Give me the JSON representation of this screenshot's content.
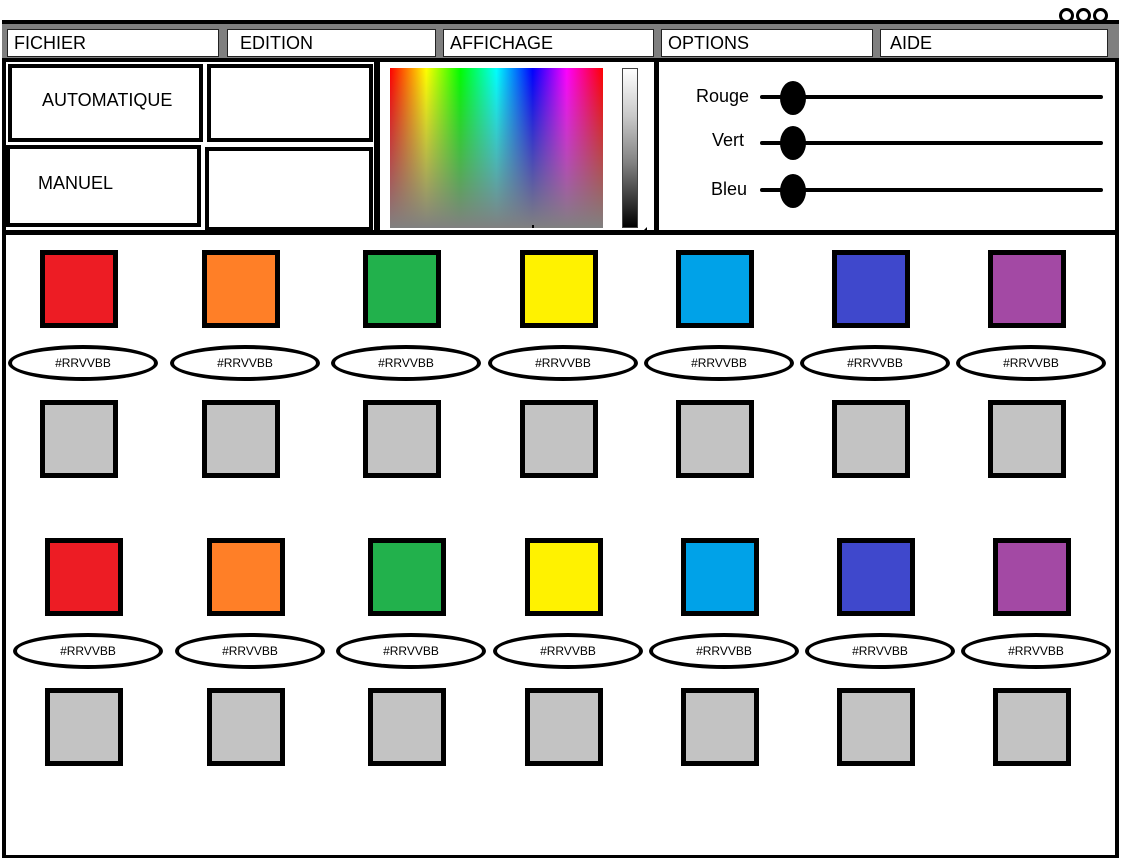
{
  "window": {
    "controls": [
      "minimize-icon",
      "maximize-icon",
      "close-icon"
    ]
  },
  "menu": {
    "items": [
      "FICHIER",
      "EDITION",
      "AFFICHAGE",
      "OPTIONS",
      "AIDE"
    ]
  },
  "mode": {
    "auto_label": "AUTOMATIQUE",
    "manual_label": "MANUEL"
  },
  "sliders": {
    "red_label": "Rouge",
    "green_label": "Vert",
    "blue_label": "Bleu",
    "red_value": 0,
    "green_value": 0,
    "blue_value": 0
  },
  "palette": {
    "hex_placeholder": "#RRVVBB",
    "colors": [
      "#ed1c24",
      "#ff7f27",
      "#22b14c",
      "#fff200",
      "#00a2e8",
      "#3f48cc",
      "#a349a4"
    ],
    "empty_color": "#c3c3c3",
    "groups": [
      {
        "hex_labels": [
          "#RRVVBB",
          "#RRVVBB",
          "#RRVVBB",
          "#RRVVBB",
          "#RRVVBB",
          "#RRVVBB",
          "#RRVVBB"
        ]
      },
      {
        "hex_labels": [
          "#RRVVBB",
          "#RRVVBB",
          "#RRVVBB",
          "#RRVVBB",
          "#RRVVBB",
          "#RRVVBB",
          "#RRVVBB"
        ]
      }
    ]
  }
}
